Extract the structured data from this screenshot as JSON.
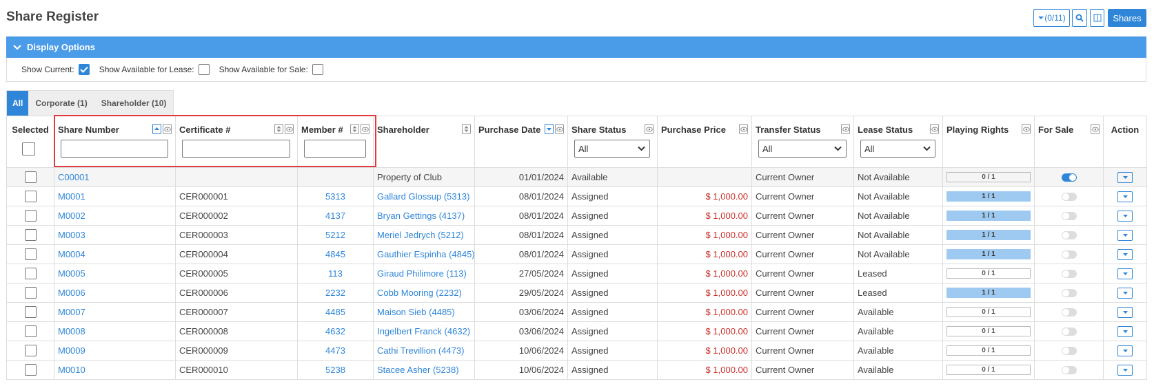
{
  "header": {
    "title": "Share Register",
    "filter_button": "(0/11)",
    "shares_button": "Shares"
  },
  "display_options": {
    "title": "Display Options",
    "options": [
      {
        "label": "Show Current:",
        "checked": true
      },
      {
        "label": "Show Available for Lease:",
        "checked": false
      },
      {
        "label": "Show Available for Sale:",
        "checked": false
      }
    ]
  },
  "tabs": {
    "items": [
      "All",
      "Corporate (1)",
      "Shareholder (10)"
    ],
    "active": 0
  },
  "table": {
    "select_filter_label": "All",
    "columns": [
      {
        "key": "selected",
        "label": "Selected",
        "filter": "checkbox"
      },
      {
        "key": "share_number",
        "label": "Share Number",
        "sort": "asc",
        "hideable": true,
        "filter": "text"
      },
      {
        "key": "certificate",
        "label": "Certificate #",
        "sort": "none",
        "hideable": true,
        "filter": "text"
      },
      {
        "key": "member",
        "label": "Member #",
        "sort": "none",
        "hideable": true,
        "filter": "text"
      },
      {
        "key": "shareholder",
        "label": "Shareholder",
        "sort": "none"
      },
      {
        "key": "purchase_date",
        "label": "Purchase Date",
        "sort": "desc",
        "hideable": true
      },
      {
        "key": "share_status",
        "label": "Share Status",
        "hideable": true,
        "filter": "select"
      },
      {
        "key": "purchase_price",
        "label": "Purchase Price",
        "hideable": true
      },
      {
        "key": "transfer_status",
        "label": "Transfer Status",
        "hideable": true,
        "filter": "select"
      },
      {
        "key": "lease_status",
        "label": "Lease Status",
        "hideable": true,
        "filter": "select"
      },
      {
        "key": "playing_rights",
        "label": "Playing Rights",
        "hideable": true
      },
      {
        "key": "for_sale",
        "label": "For Sale",
        "hideable": true
      },
      {
        "key": "action",
        "label": "Action"
      }
    ],
    "rows": [
      {
        "share_number": "C00001",
        "shareholder": "Property of Club",
        "purchase_date": "01/01/2024",
        "share_status": "Available",
        "transfer_status": "Current Owner",
        "lease_status": "Not Available",
        "playing_rights": "0 / 1",
        "rights_full": false,
        "for_sale": true
      },
      {
        "share_number": "M0001",
        "certificate": "CER000001",
        "member": "5313",
        "shareholder": "Gallard Glossup (5313)",
        "purchase_date": "08/01/2024",
        "share_status": "Assigned",
        "purchase_price": "$ 1,000.00",
        "transfer_status": "Current Owner",
        "lease_status": "Not Available",
        "playing_rights": "1 / 1",
        "rights_full": true,
        "for_sale": false
      },
      {
        "share_number": "M0002",
        "certificate": "CER000002",
        "member": "4137",
        "shareholder": "Bryan Gettings (4137)",
        "purchase_date": "08/01/2024",
        "share_status": "Assigned",
        "purchase_price": "$ 1,000.00",
        "transfer_status": "Current Owner",
        "lease_status": "Not Available",
        "playing_rights": "1 / 1",
        "rights_full": true,
        "for_sale": false
      },
      {
        "share_number": "M0003",
        "certificate": "CER000003",
        "member": "5212",
        "shareholder": "Meriel Jedrych (5212)",
        "purchase_date": "08/01/2024",
        "share_status": "Assigned",
        "purchase_price": "$ 1,000.00",
        "transfer_status": "Current Owner",
        "lease_status": "Not Available",
        "playing_rights": "1 / 1",
        "rights_full": true,
        "for_sale": false
      },
      {
        "share_number": "M0004",
        "certificate": "CER000004",
        "member": "4845",
        "shareholder": "Gauthier Espinha (4845)",
        "purchase_date": "08/01/2024",
        "share_status": "Assigned",
        "purchase_price": "$ 1,000.00",
        "transfer_status": "Current Owner",
        "lease_status": "Not Available",
        "playing_rights": "1 / 1",
        "rights_full": true,
        "for_sale": false
      },
      {
        "share_number": "M0005",
        "certificate": "CER000005",
        "member": "113",
        "shareholder": "Giraud Philimore (113)",
        "purchase_date": "27/05/2024",
        "share_status": "Assigned",
        "purchase_price": "$ 1,000.00",
        "transfer_status": "Current Owner",
        "lease_status": "Leased",
        "playing_rights": "0 / 1",
        "rights_full": false,
        "for_sale": false
      },
      {
        "share_number": "M0006",
        "certificate": "CER000006",
        "member": "2232",
        "shareholder": "Cobb Mooring (2232)",
        "purchase_date": "29/05/2024",
        "share_status": "Assigned",
        "purchase_price": "$ 1,000.00",
        "transfer_status": "Current Owner",
        "lease_status": "Leased",
        "playing_rights": "1 / 1",
        "rights_full": true,
        "for_sale": false
      },
      {
        "share_number": "M0007",
        "certificate": "CER000007",
        "member": "4485",
        "shareholder": "Maison Sieb (4485)",
        "purchase_date": "03/06/2024",
        "share_status": "Assigned",
        "purchase_price": "$ 1,000.00",
        "transfer_status": "Current Owner",
        "lease_status": "Available",
        "playing_rights": "0 / 1",
        "rights_full": false,
        "for_sale": false
      },
      {
        "share_number": "M0008",
        "certificate": "CER000008",
        "member": "4632",
        "shareholder": "Ingelbert Franck (4632)",
        "purchase_date": "03/06/2024",
        "share_status": "Assigned",
        "purchase_price": "$ 1,000.00",
        "transfer_status": "Current Owner",
        "lease_status": "Available",
        "playing_rights": "0 / 1",
        "rights_full": false,
        "for_sale": false
      },
      {
        "share_number": "M0009",
        "certificate": "CER000009",
        "member": "4473",
        "shareholder": "Cathi Trevillion (4473)",
        "purchase_date": "10/06/2024",
        "share_status": "Assigned",
        "purchase_price": "$ 1,000.00",
        "transfer_status": "Current Owner",
        "lease_status": "Available",
        "playing_rights": "0 / 1",
        "rights_full": false,
        "for_sale": false
      },
      {
        "share_number": "M0010",
        "certificate": "CER000010",
        "member": "5238",
        "shareholder": "Stacee Asher (5238)",
        "purchase_date": "10/06/2024",
        "share_status": "Assigned",
        "purchase_price": "$ 1,000.00",
        "transfer_status": "Current Owner",
        "lease_status": "Available",
        "playing_rights": "0 / 1",
        "rights_full": false,
        "for_sale": false
      }
    ]
  }
}
